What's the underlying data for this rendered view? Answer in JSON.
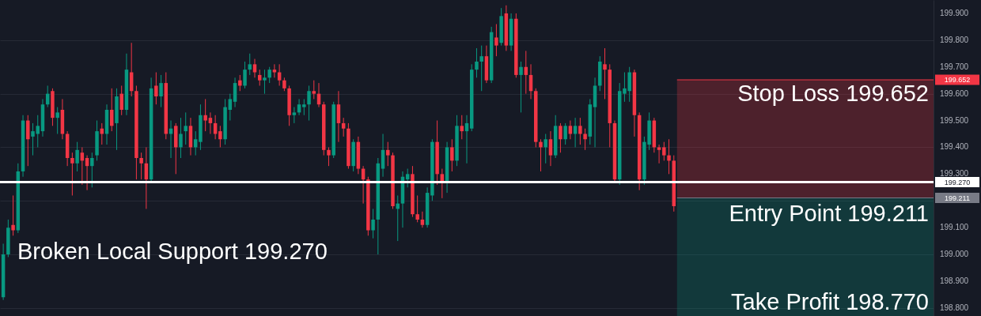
{
  "chart_data": {
    "type": "candlestick",
    "categories": [
      null,
      null,
      null,
      null,
      null,
      null,
      null,
      null,
      null,
      null,
      null,
      null,
      null,
      null,
      null,
      null,
      null,
      null,
      null,
      null,
      null,
      null,
      null,
      null,
      null,
      null,
      null,
      null,
      null,
      null,
      null,
      null,
      null,
      null,
      null,
      null,
      null,
      null,
      null,
      null,
      null,
      null,
      null,
      null,
      null,
      null,
      null,
      null,
      null,
      null,
      null,
      null,
      null,
      null,
      null,
      null,
      null,
      null,
      null,
      null,
      null,
      null,
      null,
      null,
      null,
      null,
      null,
      null,
      null,
      null,
      null,
      null,
      null,
      null,
      null,
      null,
      null,
      null,
      null,
      null,
      null,
      null,
      null,
      null,
      null,
      null,
      null,
      null,
      null,
      null,
      null,
      null,
      null,
      null,
      null,
      null,
      null,
      null,
      null,
      null,
      null,
      null,
      null,
      null,
      null,
      null,
      null,
      null,
      null,
      null,
      null,
      null,
      null,
      null,
      null,
      null,
      null,
      null,
      null,
      null,
      null,
      null,
      null,
      null,
      null,
      null,
      null,
      null,
      null,
      null,
      null,
      null,
      null,
      null,
      null,
      null,
      null,
      null,
      null,
      null,
      null,
      null,
      null,
      null,
      null,
      null,
      null,
      null,
      null,
      null,
      null,
      null,
      null,
      null,
      null,
      null,
      null,
      null,
      null,
      null,
      null,
      null,
      null,
      null,
      null,
      null,
      null,
      null,
      null,
      null,
      null,
      null,
      null,
      null,
      null,
      null,
      null,
      null,
      null,
      null,
      null,
      null,
      null,
      null,
      null,
      null,
      null,
      null,
      null
    ],
    "ohlc": [
      [
        198.84,
        199.04,
        198.83,
        199.0
      ],
      [
        199.0,
        199.13,
        198.99,
        199.1
      ],
      [
        199.11,
        199.22,
        199.07,
        199.09
      ],
      [
        199.09,
        199.34,
        199.08,
        199.31
      ],
      [
        199.31,
        199.52,
        199.29,
        199.5
      ],
      [
        199.5,
        199.52,
        199.33,
        199.43
      ],
      [
        199.44,
        199.49,
        199.37,
        199.46
      ],
      [
        199.45,
        199.52,
        199.4,
        199.48
      ],
      [
        199.46,
        199.58,
        199.44,
        199.56
      ],
      [
        199.56,
        199.63,
        199.55,
        199.6
      ],
      [
        199.61,
        199.62,
        199.48,
        199.51
      ],
      [
        199.51,
        199.55,
        199.45,
        199.53
      ],
      [
        199.54,
        199.58,
        199.43,
        199.45
      ],
      [
        199.45,
        199.46,
        199.33,
        199.36
      ],
      [
        199.36,
        199.38,
        199.22,
        199.34
      ],
      [
        199.34,
        199.42,
        199.31,
        199.39
      ],
      [
        199.38,
        199.4,
        199.26,
        199.35
      ],
      [
        199.36,
        199.37,
        199.24,
        199.33
      ],
      [
        199.33,
        199.38,
        199.25,
        199.36
      ],
      [
        199.37,
        199.5,
        199.35,
        199.46
      ],
      [
        199.47,
        199.49,
        199.41,
        199.45
      ],
      [
        199.45,
        199.56,
        199.41,
        199.54
      ],
      [
        199.54,
        199.62,
        199.46,
        199.48
      ],
      [
        199.49,
        199.62,
        199.39,
        199.59
      ],
      [
        199.6,
        199.63,
        199.52,
        199.54
      ],
      [
        199.54,
        199.75,
        199.52,
        199.69
      ],
      [
        199.68,
        199.79,
        199.59,
        199.61
      ],
      [
        199.61,
        199.63,
        199.28,
        199.36
      ],
      [
        199.36,
        199.38,
        199.28,
        199.34
      ],
      [
        199.34,
        199.4,
        199.17,
        199.28
      ],
      [
        199.28,
        199.66,
        199.27,
        199.62
      ],
      [
        199.63,
        199.68,
        199.56,
        199.59
      ],
      [
        199.59,
        199.67,
        199.55,
        199.64
      ],
      [
        199.64,
        199.68,
        199.43,
        199.45
      ],
      [
        199.45,
        199.5,
        199.36,
        199.47
      ],
      [
        199.48,
        199.49,
        199.3,
        199.4
      ],
      [
        199.4,
        199.51,
        199.36,
        199.45
      ],
      [
        199.46,
        199.53,
        199.41,
        199.48
      ],
      [
        199.48,
        199.51,
        199.37,
        199.4
      ],
      [
        199.4,
        199.46,
        199.37,
        199.43
      ],
      [
        199.42,
        199.56,
        199.39,
        199.52
      ],
      [
        199.52,
        199.58,
        199.46,
        199.5
      ],
      [
        199.51,
        199.53,
        199.45,
        199.49
      ],
      [
        199.49,
        199.52,
        199.43,
        199.45
      ],
      [
        199.46,
        199.48,
        199.4,
        199.43
      ],
      [
        199.43,
        199.58,
        199.41,
        199.55
      ],
      [
        199.54,
        199.6,
        199.5,
        199.58
      ],
      [
        199.57,
        199.66,
        199.55,
        199.64
      ],
      [
        199.65,
        199.67,
        199.61,
        199.63
      ],
      [
        199.63,
        199.72,
        199.62,
        199.69
      ],
      [
        199.69,
        199.75,
        199.67,
        199.71
      ],
      [
        199.71,
        199.73,
        199.66,
        199.68
      ],
      [
        199.67,
        199.69,
        199.63,
        199.65
      ],
      [
        199.65,
        199.69,
        199.6,
        199.66
      ],
      [
        199.66,
        199.7,
        199.64,
        199.69
      ],
      [
        199.69,
        199.71,
        199.66,
        199.68
      ],
      [
        199.68,
        199.71,
        199.63,
        199.65
      ],
      [
        199.65,
        199.66,
        199.61,
        199.62
      ],
      [
        199.62,
        199.63,
        199.48,
        199.52
      ],
      [
        199.52,
        199.55,
        199.49,
        199.53
      ],
      [
        199.53,
        199.58,
        199.52,
        199.56
      ],
      [
        199.55,
        199.58,
        199.52,
        199.56
      ],
      [
        199.56,
        199.63,
        199.5,
        199.61
      ],
      [
        199.61,
        199.65,
        199.58,
        199.6
      ],
      [
        199.6,
        199.64,
        199.55,
        199.56
      ],
      [
        199.56,
        199.57,
        199.37,
        199.39
      ],
      [
        199.39,
        199.4,
        199.33,
        199.37
      ],
      [
        199.37,
        199.57,
        199.36,
        199.56
      ],
      [
        199.56,
        199.61,
        199.42,
        199.49
      ],
      [
        199.49,
        199.51,
        199.44,
        199.47
      ],
      [
        199.47,
        199.49,
        199.32,
        199.33
      ],
      [
        199.33,
        199.43,
        199.31,
        199.42
      ],
      [
        199.42,
        199.44,
        199.3,
        199.32
      ],
      [
        199.32,
        199.33,
        199.19,
        199.28
      ],
      [
        199.28,
        199.29,
        199.07,
        199.09
      ],
      [
        199.09,
        199.17,
        199.06,
        199.13
      ],
      [
        199.13,
        199.36,
        199.0,
        199.34
      ],
      [
        199.32,
        199.45,
        199.29,
        199.39
      ],
      [
        199.39,
        199.42,
        199.33,
        199.37
      ],
      [
        199.37,
        199.38,
        199.17,
        199.18
      ],
      [
        199.17,
        199.22,
        199.05,
        199.19
      ],
      [
        199.19,
        199.31,
        199.1,
        199.29
      ],
      [
        199.28,
        199.32,
        199.25,
        199.3
      ],
      [
        199.3,
        199.33,
        199.14,
        199.15
      ],
      [
        199.15,
        199.22,
        199.12,
        199.13
      ],
      [
        199.13,
        199.16,
        199.1,
        199.11
      ],
      [
        199.11,
        199.25,
        199.1,
        199.23
      ],
      [
        199.22,
        199.43,
        199.2,
        199.42
      ],
      [
        199.42,
        199.5,
        199.26,
        199.3
      ],
      [
        199.3,
        199.32,
        199.21,
        199.27
      ],
      [
        199.27,
        199.42,
        199.23,
        199.4
      ],
      [
        199.4,
        199.43,
        199.31,
        199.35
      ],
      [
        199.35,
        199.52,
        199.33,
        199.48
      ],
      [
        199.48,
        199.52,
        199.43,
        199.46
      ],
      [
        199.46,
        199.52,
        199.34,
        199.49
      ],
      [
        199.47,
        199.71,
        199.46,
        199.69
      ],
      [
        199.69,
        199.77,
        199.66,
        199.72
      ],
      [
        199.72,
        199.78,
        199.61,
        199.74
      ],
      [
        199.74,
        199.78,
        199.64,
        199.65
      ],
      [
        199.65,
        199.85,
        199.64,
        199.83
      ],
      [
        199.81,
        199.86,
        199.74,
        199.78
      ],
      [
        199.79,
        199.92,
        199.78,
        199.89
      ],
      [
        199.9,
        199.93,
        199.76,
        199.78
      ],
      [
        199.78,
        199.9,
        199.76,
        199.88
      ],
      [
        199.88,
        199.9,
        199.66,
        199.67
      ],
      [
        199.67,
        199.72,
        199.53,
        199.7
      ],
      [
        199.7,
        199.76,
        199.6,
        199.67
      ],
      [
        199.67,
        199.71,
        199.58,
        199.61
      ],
      [
        199.61,
        199.62,
        199.4,
        199.42
      ],
      [
        199.42,
        199.43,
        199.31,
        199.4
      ],
      [
        199.4,
        199.45,
        199.34,
        199.43
      ],
      [
        199.43,
        199.46,
        199.33,
        199.37
      ],
      [
        199.37,
        199.52,
        199.36,
        199.48
      ],
      [
        199.48,
        199.49,
        199.38,
        199.43
      ],
      [
        199.43,
        199.49,
        199.41,
        199.48
      ],
      [
        199.48,
        199.5,
        199.43,
        199.45
      ],
      [
        199.45,
        199.51,
        199.4,
        199.48
      ],
      [
        199.48,
        199.51,
        199.41,
        199.45
      ],
      [
        199.45,
        199.47,
        199.39,
        199.43
      ],
      [
        199.44,
        199.58,
        199.41,
        199.56
      ],
      [
        199.55,
        199.66,
        199.4,
        199.63
      ],
      [
        199.63,
        199.74,
        199.61,
        199.72
      ],
      [
        199.71,
        199.77,
        199.58,
        199.69
      ],
      [
        199.69,
        199.71,
        199.4,
        199.49
      ],
      [
        199.49,
        199.5,
        199.27,
        199.28
      ],
      [
        199.28,
        199.64,
        199.26,
        199.61
      ],
      [
        199.6,
        199.68,
        199.57,
        199.62
      ],
      [
        199.61,
        199.7,
        199.57,
        199.68
      ],
      [
        199.68,
        199.69,
        199.44,
        199.52
      ],
      [
        199.52,
        199.53,
        199.24,
        199.28
      ],
      [
        199.28,
        199.44,
        199.26,
        199.42
      ],
      [
        199.41,
        199.53,
        199.39,
        199.5
      ],
      [
        199.5,
        199.51,
        199.38,
        199.4
      ],
      [
        199.4,
        199.41,
        199.34,
        199.39
      ],
      [
        199.4,
        199.42,
        199.35,
        199.37
      ],
      [
        199.37,
        199.43,
        199.3,
        199.35
      ],
      [
        199.35,
        199.37,
        199.16,
        199.18
      ],
      null,
      null,
      null,
      null,
      null,
      null,
      null,
      null,
      null,
      null,
      null,
      null,
      null,
      null,
      null,
      null,
      null,
      null,
      null,
      null,
      null,
      null,
      null,
      null,
      null,
      null,
      null,
      null,
      null,
      null,
      null,
      null,
      null,
      null,
      null,
      null,
      null,
      null,
      null,
      null,
      null,
      null,
      null,
      null,
      null,
      null,
      null,
      null,
      null,
      null,
      null,
      null
    ],
    "ylim": [
      198.77,
      199.95
    ],
    "yticks": [
      {
        "value": 198.8,
        "label": "198.800"
      },
      {
        "value": 198.9,
        "label": "198.900"
      },
      {
        "value": 199.0,
        "label": "199.000"
      },
      {
        "value": 199.1,
        "label": "199.100"
      },
      {
        "value": 199.2,
        "label": null
      },
      {
        "value": 199.3,
        "label": "199.300"
      },
      {
        "value": 199.4,
        "label": "199.400"
      },
      {
        "value": 199.5,
        "label": "199.500"
      },
      {
        "value": 199.6,
        "label": "199.600"
      },
      {
        "value": 199.7,
        "label": "199.700"
      },
      {
        "value": 199.8,
        "label": "199.800"
      },
      {
        "value": 199.9,
        "label": "199.900"
      }
    ],
    "tick_labels": "y",
    "grid": "y",
    "ref_lines": [
      {
        "axis": "y",
        "value": 199.27,
        "label": "199.270",
        "color": "#ffffff"
      },
      {
        "axis": "y",
        "value": 199.211,
        "label": "199.211",
        "color": "#787b86"
      },
      {
        "axis": "y",
        "value": 199.652,
        "label": "199.652",
        "color": "#f23645"
      }
    ],
    "bands": [
      {
        "axis": "y",
        "from": 199.211,
        "to": 199.652,
        "label": "Stop Loss 199.652",
        "color": "#f23645"
      },
      {
        "axis": "y",
        "from": 198.77,
        "to": 199.211,
        "label": "Take Profit 198.770",
        "color": "#089981"
      }
    ],
    "annotations": [
      "Broken Local Support 199.270",
      "Entry Point 199.211"
    ]
  }
}
